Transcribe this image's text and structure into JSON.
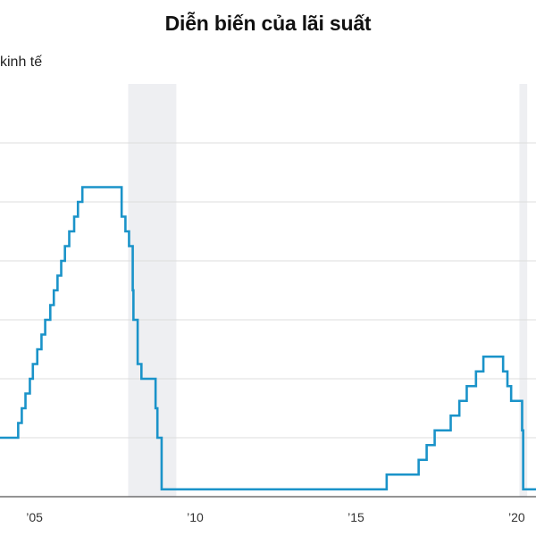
{
  "chart_data": {
    "type": "line",
    "title": "Diễn biến của lãi suất",
    "xlabel": "",
    "ylabel": "",
    "shaded_label": "kinh tế",
    "step": "post",
    "grid": true,
    "xlim": [
      "2003-12-06",
      "2020-08-08"
    ],
    "ylim": [
      0,
      7
    ],
    "y_gridlines": [
      1,
      2,
      3,
      4,
      5,
      6
    ],
    "x_ticks": [
      {
        "date": "2005-01-01",
        "label": "’05"
      },
      {
        "date": "2010-01-01",
        "label": "’10"
      },
      {
        "date": "2015-01-01",
        "label": "’15"
      },
      {
        "date": "2020-01-01",
        "label": "’20"
      }
    ],
    "shaded_periods": [
      {
        "start": "2007-12-01",
        "end": "2009-06-01"
      },
      {
        "start": "2020-02-01",
        "end": "2020-04-30"
      }
    ],
    "series": [
      {
        "x": [
          "2004-01-01",
          "2004-06-30",
          "2004-08-10",
          "2004-09-21",
          "2004-11-10",
          "2004-12-14",
          "2005-02-02",
          "2005-03-22",
          "2005-05-03",
          "2005-06-30",
          "2005-08-09",
          "2005-09-20",
          "2005-11-01",
          "2005-12-13",
          "2006-01-31",
          "2006-03-28",
          "2006-05-10",
          "2006-06-29",
          "2007-09-18",
          "2007-10-31",
          "2007-12-11",
          "2008-01-22",
          "2008-01-30",
          "2008-03-18",
          "2008-04-30",
          "2008-10-08",
          "2008-10-29",
          "2008-12-16",
          "2015-12-16",
          "2016-12-14",
          "2017-03-15",
          "2017-06-14",
          "2017-12-13",
          "2018-03-21",
          "2018-06-13",
          "2018-09-26",
          "2018-12-19",
          "2019-07-31",
          "2019-09-18",
          "2019-10-30",
          "2020-03-03",
          "2020-03-15"
        ],
        "y": [
          1.0,
          1.25,
          1.5,
          1.75,
          2.0,
          2.25,
          2.5,
          2.75,
          3.0,
          3.25,
          3.5,
          3.75,
          4.0,
          4.25,
          4.5,
          4.75,
          5.0,
          5.25,
          4.75,
          4.5,
          4.25,
          3.5,
          3.0,
          2.25,
          2.0,
          1.5,
          1.0,
          0.125,
          0.375,
          0.625,
          0.875,
          1.125,
          1.375,
          1.625,
          1.875,
          2.125,
          2.375,
          2.125,
          1.875,
          1.625,
          1.125,
          0.125
        ]
      }
    ]
  },
  "colors": {
    "line": "#1a93c9",
    "shade": "#eeeff2",
    "grid": "#dcdcdc",
    "axis": "#555555",
    "text": "#111111"
  }
}
